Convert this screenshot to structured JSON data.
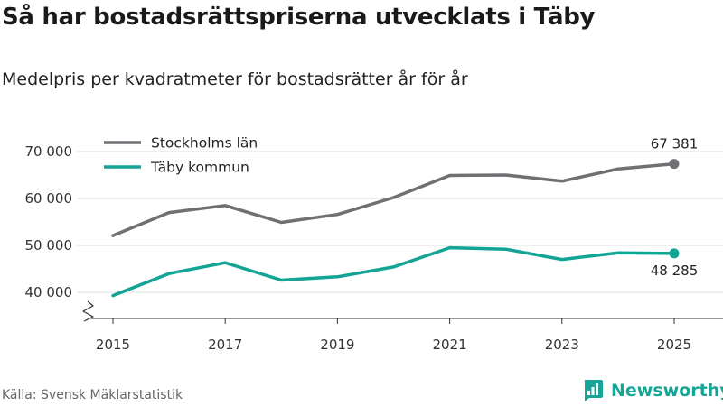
{
  "header": {
    "title": "Så har bostadsrättspriserna utvecklats i Täby",
    "subtitle": "Medelpris per kvadratmeter för bostadsrätter år för år"
  },
  "footer": {
    "source": "Källa: Svensk Mäklarstatistik",
    "brand": "Newsworthy"
  },
  "colors": {
    "stockholm": "#716f74",
    "taby": "#13a496",
    "grid": "#dedede",
    "brand": "#16a596"
  },
  "chart_data": {
    "type": "line",
    "title": "Så har bostadsrättspriserna utvecklats i Täby",
    "subtitle": "Medelpris per kvadratmeter för bostadsrätter år för år",
    "xlabel": "",
    "ylabel": "",
    "x": [
      2015,
      2016,
      2017,
      2018,
      2019,
      2020,
      2021,
      2022,
      2023,
      2024,
      2025
    ],
    "x_ticks": [
      "2015",
      "2017",
      "2019",
      "2021",
      "2023",
      "2025"
    ],
    "y_ticks": [
      "40 000",
      "50 000",
      "60 000",
      "70 000"
    ],
    "y_tick_values": [
      40000,
      50000,
      60000,
      70000
    ],
    "ylim": [
      35000,
      72500
    ],
    "axis_break": true,
    "grid": true,
    "legend": "top-left",
    "series": [
      {
        "name": "Stockholms län",
        "color": "#716f74",
        "values": [
          52100,
          57000,
          58500,
          54900,
          56600,
          60200,
          64900,
          65000,
          63700,
          66300,
          67381
        ],
        "end_label": "67 381"
      },
      {
        "name": "Täby kommun",
        "color": "#13a496",
        "values": [
          39300,
          44000,
          46300,
          42600,
          43300,
          45400,
          49500,
          49200,
          47000,
          48400,
          48285
        ],
        "end_label": "48 285"
      }
    ]
  }
}
